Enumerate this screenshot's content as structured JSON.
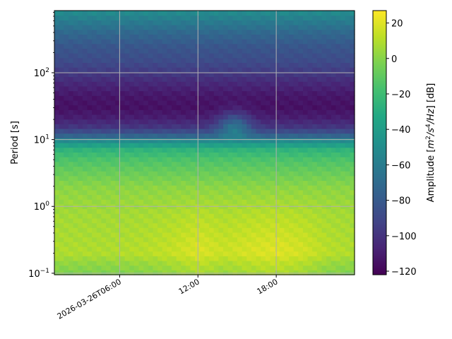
{
  "chart_data": {
    "type": "heatmap",
    "title": "",
    "xlabel": "",
    "ylabel": "Period [s]",
    "y_scale": "log",
    "ylim": [
      0.095,
      850
    ],
    "x_unit": "hours of 2026-03-26",
    "xlim": [
      1.0,
      24.0
    ],
    "x_ticks": [
      {
        "value": 6,
        "label": "2026-03-26T06:00"
      },
      {
        "value": 12,
        "label": "12:00"
      },
      {
        "value": 18,
        "label": "18:00"
      }
    ],
    "y_ticks": [
      {
        "value": 0.1,
        "base": "10",
        "exp": "−1"
      },
      {
        "value": 1,
        "base": "10",
        "exp": "0"
      },
      {
        "value": 10,
        "base": "10",
        "exp": "1"
      },
      {
        "value": 100,
        "base": "10",
        "exp": "2"
      }
    ],
    "grid": true,
    "colormap": "viridis",
    "colorbar": {
      "label_parts": [
        "Amplitude [",
        "m",
        "2",
        "/",
        "s",
        "4",
        "/",
        "Hz",
        "] [dB]"
      ],
      "range": [
        -122,
        27
      ],
      "ticks": [
        20,
        0,
        -20,
        -40,
        -60,
        -80,
        -100,
        -120
      ],
      "tick_labels": [
        "20",
        "0",
        "−20",
        "−40",
        "−60",
        "−80",
        "−100",
        "−120"
      ]
    },
    "amplitude_profile_db": {
      "period_s": [
        0.1,
        0.14,
        0.2,
        0.3,
        0.5,
        0.8,
        1.2,
        2,
        3,
        5,
        7,
        9.5,
        12,
        16,
        22,
        30,
        45,
        70,
        100,
        150,
        250,
        400,
        600,
        850
      ],
      "amplitude_db": [
        -2,
        2,
        9,
        8,
        7,
        6,
        4,
        1,
        -6,
        -15,
        -25,
        -48,
        -80,
        -100,
        -110,
        -115,
        -113,
        -105,
        -97,
        -88,
        -82,
        -72,
        -60,
        -50
      ]
    },
    "daytime_excess_db": {
      "hours": [
        1,
        5,
        8,
        10,
        12,
        14,
        16,
        18,
        20,
        22,
        24
      ],
      "excess": [
        0,
        0,
        2,
        5,
        10,
        6,
        9,
        11,
        8,
        2,
        0
      ]
    },
    "event": {
      "hour": 14.8,
      "period_s": 14,
      "peak_db": -50
    }
  }
}
